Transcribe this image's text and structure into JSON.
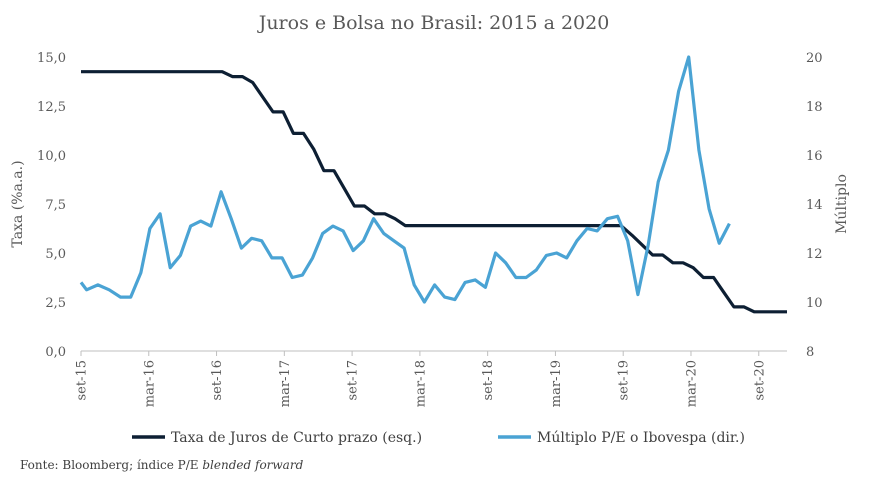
{
  "chart_data": {
    "type": "line",
    "title": "Juros e Bolsa no Brasil: 2015 a 2020",
    "ylabel_left": "Taxa (%a.a.)",
    "ylabel_right": "Múltiplo",
    "y_left": {
      "min": 0,
      "max": 15,
      "ticks": [
        "0,0",
        "2,5",
        "5,0",
        "7,5",
        "10,0",
        "12,5",
        "15,0"
      ]
    },
    "y_right": {
      "min": 8,
      "max": 20,
      "ticks": [
        "8",
        "10",
        "12",
        "14",
        "16",
        "18",
        "20"
      ]
    },
    "x_ticks": [
      {
        "label": "set-15",
        "m": 0
      },
      {
        "label": "mar-16",
        "m": 6
      },
      {
        "label": "set-16",
        "m": 12
      },
      {
        "label": "mar-17",
        "m": 18
      },
      {
        "label": "set-17",
        "m": 24
      },
      {
        "label": "mar-18",
        "m": 30
      },
      {
        "label": "set-18",
        "m": 36
      },
      {
        "label": "mar-19",
        "m": 42
      },
      {
        "label": "set-19",
        "m": 48
      },
      {
        "label": "mar-20",
        "m": 54
      },
      {
        "label": "set-20",
        "m": 60
      }
    ],
    "x_range": [
      0,
      62.5
    ],
    "series": [
      {
        "name": "Taxa de Juros de Curto prazo (esq.)",
        "axis": "left",
        "color": "#0d1f33",
        "points": [
          [
            0,
            14.25
          ],
          [
            12.5,
            14.25
          ],
          [
            13.4,
            14.0
          ],
          [
            14.3,
            14.0
          ],
          [
            15.2,
            13.7
          ],
          [
            17,
            12.2
          ],
          [
            17.9,
            12.2
          ],
          [
            18.8,
            11.1
          ],
          [
            19.7,
            11.1
          ],
          [
            20.6,
            10.3
          ],
          [
            21.5,
            9.2
          ],
          [
            22.4,
            9.2
          ],
          [
            23.3,
            8.3
          ],
          [
            24.2,
            7.4
          ],
          [
            25.1,
            7.4
          ],
          [
            26,
            7.0
          ],
          [
            26.9,
            7.0
          ],
          [
            27.8,
            6.75
          ],
          [
            28.7,
            6.4
          ],
          [
            47.8,
            6.4
          ],
          [
            48.8,
            5.9
          ],
          [
            49.7,
            5.4
          ],
          [
            50.6,
            4.9
          ],
          [
            51.5,
            4.9
          ],
          [
            52.4,
            4.5
          ],
          [
            53.3,
            4.5
          ],
          [
            54.2,
            4.25
          ],
          [
            55.1,
            3.75
          ],
          [
            56,
            3.75
          ],
          [
            56.9,
            3.0
          ],
          [
            57.8,
            2.25
          ],
          [
            58.7,
            2.25
          ],
          [
            59.6,
            2.0
          ],
          [
            62.5,
            2.0
          ]
        ]
      },
      {
        "name": "Múltiplo P/E o Ibovespa (dir.)",
        "axis": "right",
        "color": "#4aa3d4",
        "points": [
          [
            0,
            10.8
          ],
          [
            0.5,
            10.5
          ],
          [
            1.5,
            10.7
          ],
          [
            2.5,
            10.5
          ],
          [
            3.5,
            10.2
          ],
          [
            4.4,
            10.2
          ],
          [
            5.3,
            11.2
          ],
          [
            6.1,
            13.0
          ],
          [
            7,
            13.6
          ],
          [
            7.9,
            11.4
          ],
          [
            8.8,
            11.9
          ],
          [
            9.7,
            13.1
          ],
          [
            10.6,
            13.3
          ],
          [
            11.5,
            13.1
          ],
          [
            12.4,
            14.5
          ],
          [
            13.3,
            13.4
          ],
          [
            14.2,
            12.2
          ],
          [
            15.1,
            12.6
          ],
          [
            16,
            12.5
          ],
          [
            16.9,
            11.8
          ],
          [
            17.8,
            11.8
          ],
          [
            18.7,
            11.0
          ],
          [
            19.6,
            11.1
          ],
          [
            20.5,
            11.8
          ],
          [
            21.4,
            12.8
          ],
          [
            22.3,
            13.1
          ],
          [
            23.2,
            12.9
          ],
          [
            24.1,
            12.1
          ],
          [
            25,
            12.5
          ],
          [
            25.9,
            13.4
          ],
          [
            26.8,
            12.8
          ],
          [
            27.7,
            12.5
          ],
          [
            28.6,
            12.2
          ],
          [
            29.5,
            10.7
          ],
          [
            30.4,
            10.0
          ],
          [
            31.3,
            10.7
          ],
          [
            32.2,
            10.2
          ],
          [
            33.1,
            10.1
          ],
          [
            34,
            10.8
          ],
          [
            34.9,
            10.9
          ],
          [
            35.8,
            10.6
          ],
          [
            36.7,
            12.0
          ],
          [
            37.6,
            11.6
          ],
          [
            38.5,
            11.0
          ],
          [
            39.4,
            11.0
          ],
          [
            40.3,
            11.3
          ],
          [
            41.2,
            11.9
          ],
          [
            42.1,
            12.0
          ],
          [
            43,
            11.8
          ],
          [
            43.9,
            12.5
          ],
          [
            44.8,
            13.0
          ],
          [
            45.7,
            12.9
          ],
          [
            46.6,
            13.4
          ],
          [
            47.5,
            13.5
          ],
          [
            48.4,
            12.5
          ],
          [
            49.3,
            10.3
          ],
          [
            50.2,
            12.3
          ],
          [
            51.1,
            14.9
          ],
          [
            52,
            16.2
          ],
          [
            52.9,
            18.6
          ],
          [
            53.8,
            20.0
          ],
          [
            54.7,
            16.2
          ],
          [
            55.6,
            13.8
          ],
          [
            56.5,
            12.4
          ],
          [
            57.4,
            13.2
          ]
        ]
      }
    ],
    "legend_position": "bottom",
    "grid": false
  },
  "source": {
    "prefix": "Fonte: Bloomberg; índice P/E ",
    "italic": "blended forward"
  }
}
